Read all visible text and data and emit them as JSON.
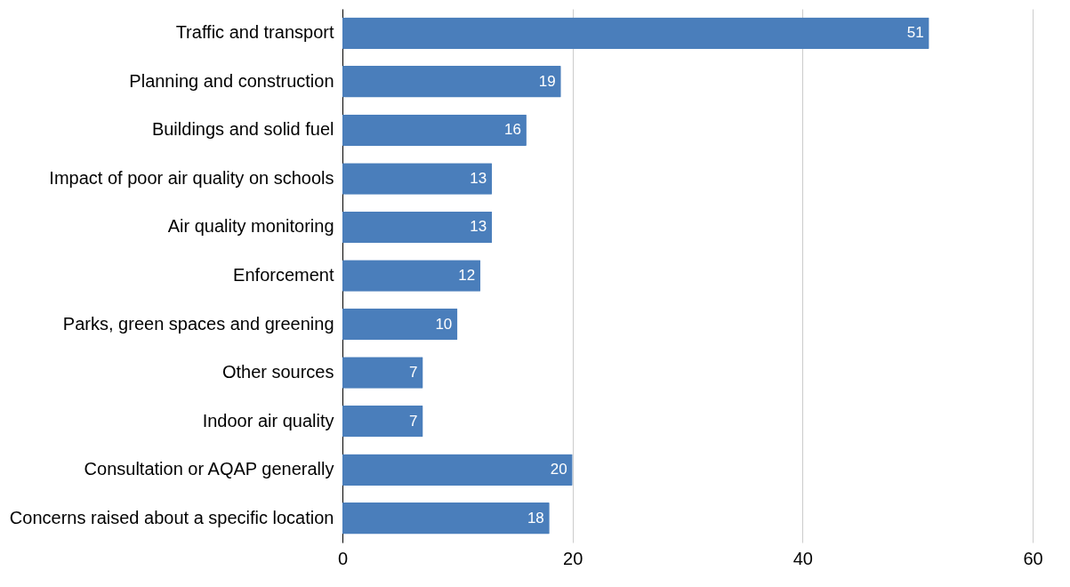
{
  "chart_data": {
    "type": "bar",
    "orientation": "horizontal",
    "categories": [
      "Traffic and transport",
      "Planning and construction",
      "Buildings and solid fuel",
      "Impact of poor air quality on schools",
      "Air quality monitoring",
      "Enforcement",
      "Parks, green spaces and greening",
      "Other sources",
      "Indoor air quality",
      "Consultation or AQAP generally",
      "Concerns raised about a specific location"
    ],
    "values": [
      51,
      19,
      16,
      13,
      13,
      12,
      10,
      7,
      7,
      20,
      18
    ],
    "color": "#4a7ebb",
    "xlim": [
      0,
      60
    ],
    "xticks": [
      0,
      20,
      40,
      60
    ],
    "grid": "x",
    "data_labels": true
  }
}
